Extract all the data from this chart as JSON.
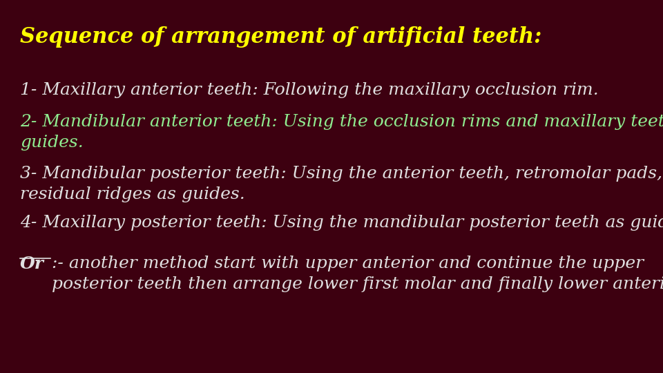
{
  "title": "Sequence of arrangement of artificial teeth:",
  "title_color": "#FFFF00",
  "title_fontsize": 22,
  "background_color": "#3D0010",
  "line1": "1- Maxillary anterior teeth: Following the maxillary occlusion rim.",
  "line1_color": "#E0E0E0",
  "line2": "2- Mandibular anterior teeth: Using the occlusion rims and maxillary teeth as\nguides.",
  "line2_color": "#90EE90",
  "line3": "3- Mandibular posterior teeth: Using the anterior teeth, retromolar pads, and\nresidual ridges as guides.",
  "line3_color": "#E0E0E0",
  "line4": "4- Maxillary posterior teeth: Using the mandibular posterior teeth as guides.",
  "line4_color": "#E0E0E0",
  "or_label": "Or",
  "or_color": "#E0E0E0",
  "or_rest": ":- another method start with upper anterior and continue the upper\nposterior teeth then arrange lower first molar and finally lower anterior teeth.",
  "or_rest_color": "#E0E0E0",
  "body_fontsize": 18,
  "title_fontsize_val": 22,
  "figwidth": 9.6,
  "figheight": 5.4,
  "dpi": 100
}
